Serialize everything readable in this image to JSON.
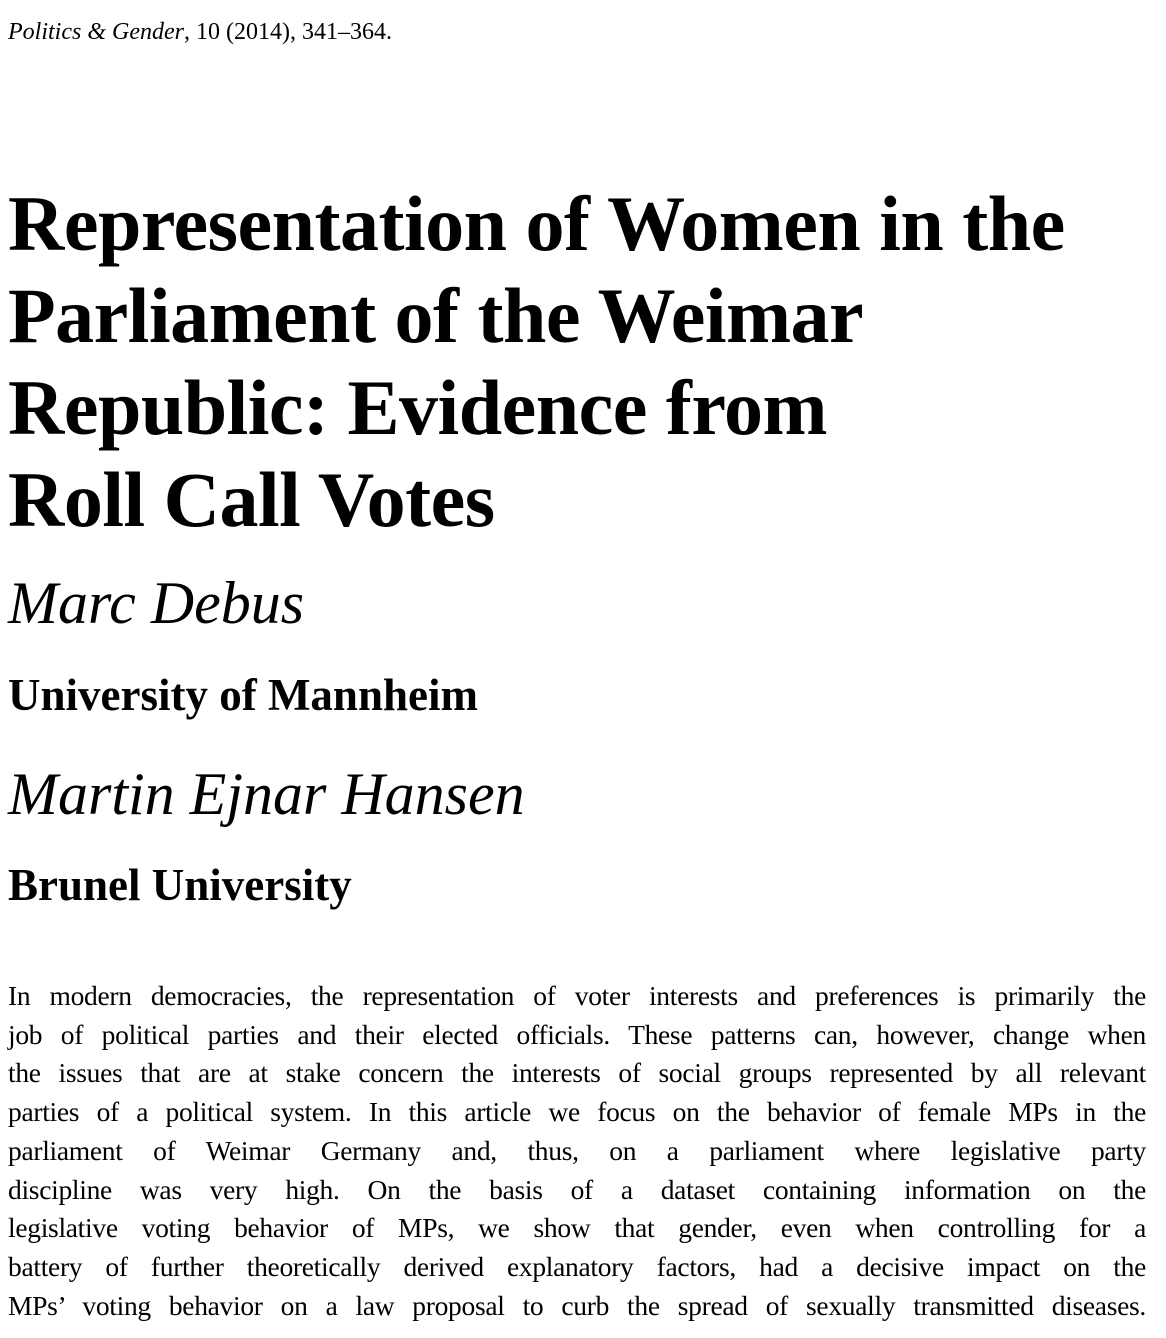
{
  "citation": {
    "journal": "Politics & Gender",
    "details": ", 10 (2014), 341–364."
  },
  "title": {
    "lines": [
      "Representation of Women in the",
      "Parliament of the Weimar",
      "Republic: Evidence from",
      "Roll Call Votes"
    ]
  },
  "authors": [
    {
      "name": "Marc Debus",
      "affiliation": "University of Mannheim"
    },
    {
      "name": "Martin Ejnar Hansen",
      "affiliation": "Brunel University"
    }
  ],
  "abstract": {
    "lines": [
      "In modern democracies, the representation of voter interests and preferences is primarily the",
      "job of political parties and their elected officials. These patterns can, however, change when",
      "the issues that are at stake concern the interests of social groups represented by all relevant",
      "parties of a political system. In this article we focus on the behavior of female MPs in the",
      "parliament of Weimar Germany and, thus, on a parliament where legislative party",
      "discipline was very high. On the basis of a dataset containing information on the",
      "legislative voting behavior of MPs, we show that gender, even when controlling for a",
      "battery of further theoretically derived explanatory factors, had a decisive impact on the",
      "MPs’ voting behavior on a law proposal to curb the spread of sexually transmitted diseases."
    ]
  }
}
